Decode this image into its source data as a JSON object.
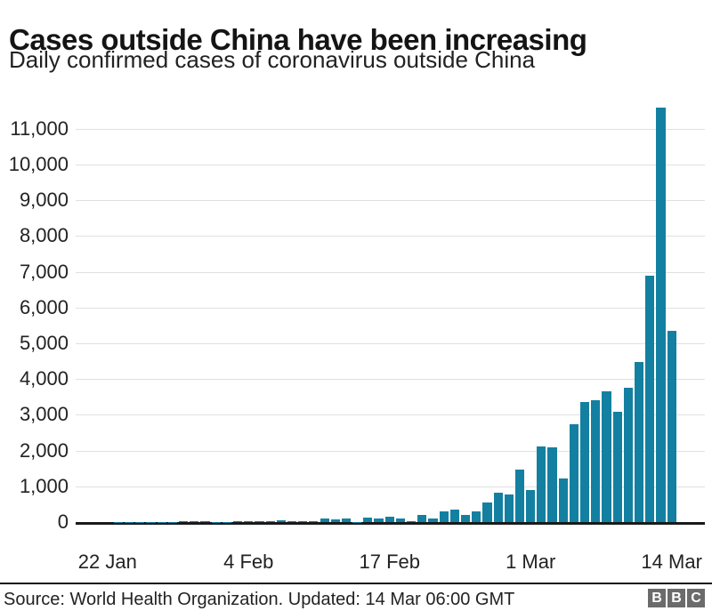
{
  "header": {
    "title": "Cases outside China have been increasing",
    "subtitle": "Daily confirmed cases of coronavirus outside China"
  },
  "chart_data": {
    "type": "bar",
    "title": "Cases outside China have been increasing",
    "subtitle": "Daily confirmed cases of coronavirus outside China",
    "xlabel": "",
    "ylabel": "",
    "ylim": [
      0,
      11600
    ],
    "grid": true,
    "legend": false,
    "bar_color": "#1380a1",
    "categories": [
      "22 Jan",
      "23 Jan",
      "24 Jan",
      "25 Jan",
      "26 Jan",
      "27 Jan",
      "28 Jan",
      "29 Jan",
      "30 Jan",
      "31 Jan",
      "1 Feb",
      "2 Feb",
      "3 Feb",
      "4 Feb",
      "5 Feb",
      "6 Feb",
      "7 Feb",
      "8 Feb",
      "9 Feb",
      "10 Feb",
      "11 Feb",
      "12 Feb",
      "13 Feb",
      "14 Feb",
      "15 Feb",
      "16 Feb",
      "17 Feb",
      "18 Feb",
      "19 Feb",
      "20 Feb",
      "21 Feb",
      "22 Feb",
      "23 Feb",
      "24 Feb",
      "25 Feb",
      "26 Feb",
      "27 Feb",
      "28 Feb",
      "29 Feb",
      "1 Mar",
      "2 Mar",
      "3 Mar",
      "4 Mar",
      "5 Mar",
      "6 Mar",
      "7 Mar",
      "8 Mar",
      "9 Mar",
      "10 Mar",
      "11 Mar",
      "12 Mar",
      "13 Mar",
      "14 Mar"
    ],
    "values": [
      0,
      2,
      4,
      5,
      6,
      8,
      10,
      15,
      20,
      25,
      12,
      12,
      15,
      15,
      18,
      20,
      50,
      25,
      20,
      25,
      90,
      65,
      90,
      10,
      120,
      105,
      140,
      105,
      15,
      190,
      110,
      290,
      350,
      200,
      300,
      550,
      820,
      780,
      1480,
      900,
      2120,
      2100,
      1220,
      2730,
      3350,
      3420,
      3650,
      3090,
      3760,
      4480,
      6880,
      11600,
      5350
    ],
    "y_tick_values": [
      0,
      1000,
      2000,
      3000,
      4000,
      5000,
      6000,
      7000,
      8000,
      9000,
      10000,
      11000
    ],
    "y_tick_labels": [
      "0",
      "1,000",
      "2,000",
      "3,000",
      "4,000",
      "5,000",
      "6,000",
      "7,000",
      "8,000",
      "9,000",
      "10,000",
      "11,000"
    ],
    "x_ticks": [
      {
        "index": 0,
        "label": "22 Jan"
      },
      {
        "index": 13,
        "label": "4 Feb"
      },
      {
        "index": 26,
        "label": "17 Feb"
      },
      {
        "index": 39,
        "label": "1 Mar"
      },
      {
        "index": 52,
        "label": "14 Mar"
      }
    ]
  },
  "footer": {
    "source": "Source: World Health Organization. Updated: 14 Mar 06:00 GMT",
    "logo": [
      "B",
      "B",
      "C"
    ]
  },
  "colors": {
    "bar": "#1380a1",
    "grid": "#e0e0e0",
    "axis": "#1a1a1a",
    "title_text": "#141414",
    "body_text": "#222222",
    "logo_bg": "#6b6b6b"
  }
}
